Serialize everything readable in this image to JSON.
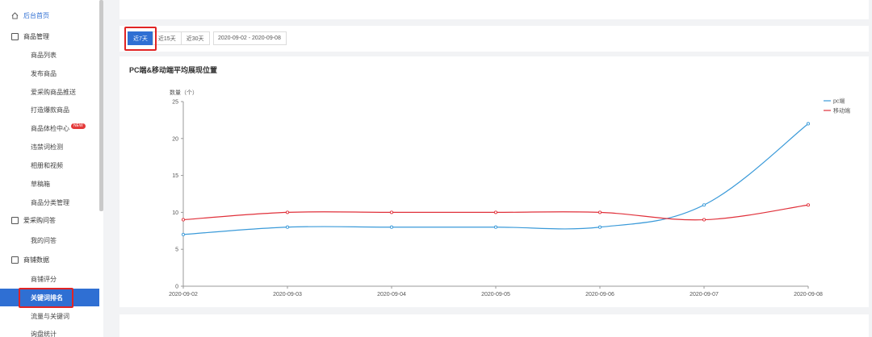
{
  "sidebar": {
    "home": "后台首页",
    "sections": [
      {
        "label": "商品管理"
      },
      {
        "label": "爱采购问答"
      },
      {
        "label": "商铺数据"
      }
    ],
    "product_items": [
      "商品列表",
      "发布商品",
      "爱采购商品推送",
      "打造爆款商品",
      "商品体检中心",
      "违禁词检测",
      "相册和视频",
      "草稿箱",
      "商品分类管理"
    ],
    "new_badge": "NEW",
    "qa_items": [
      "我的问答"
    ],
    "data_items": [
      "商铺评分",
      "关键词排名",
      "流量与关键词",
      "询盘统计"
    ],
    "active_item": "关键词排名"
  },
  "filters": {
    "tabs": [
      "近7天",
      "近15天",
      "近30天"
    ],
    "active_tab": "近7天",
    "date_range": "2020-09-02 - 2020-09-08"
  },
  "chart_data": {
    "type": "line",
    "title": "PC端&移动端平均展现位置",
    "ylabel": "数量（个）",
    "xlabel": "",
    "x": [
      "2020-09-02",
      "2020-09-03",
      "2020-09-04",
      "2020-09-05",
      "2020-09-06",
      "2020-09-07",
      "2020-09-08"
    ],
    "ylim": [
      0,
      25
    ],
    "yticks": [
      0,
      5,
      10,
      15,
      20,
      25
    ],
    "grid": false,
    "legend": "top-right",
    "series": [
      {
        "name": "pc端",
        "color": "#3a9ad9",
        "values": [
          7,
          8,
          8,
          8,
          8,
          11,
          22
        ]
      },
      {
        "name": "移动端",
        "color": "#e0303a",
        "values": [
          9,
          10,
          10,
          10,
          10,
          9,
          11
        ]
      }
    ]
  }
}
